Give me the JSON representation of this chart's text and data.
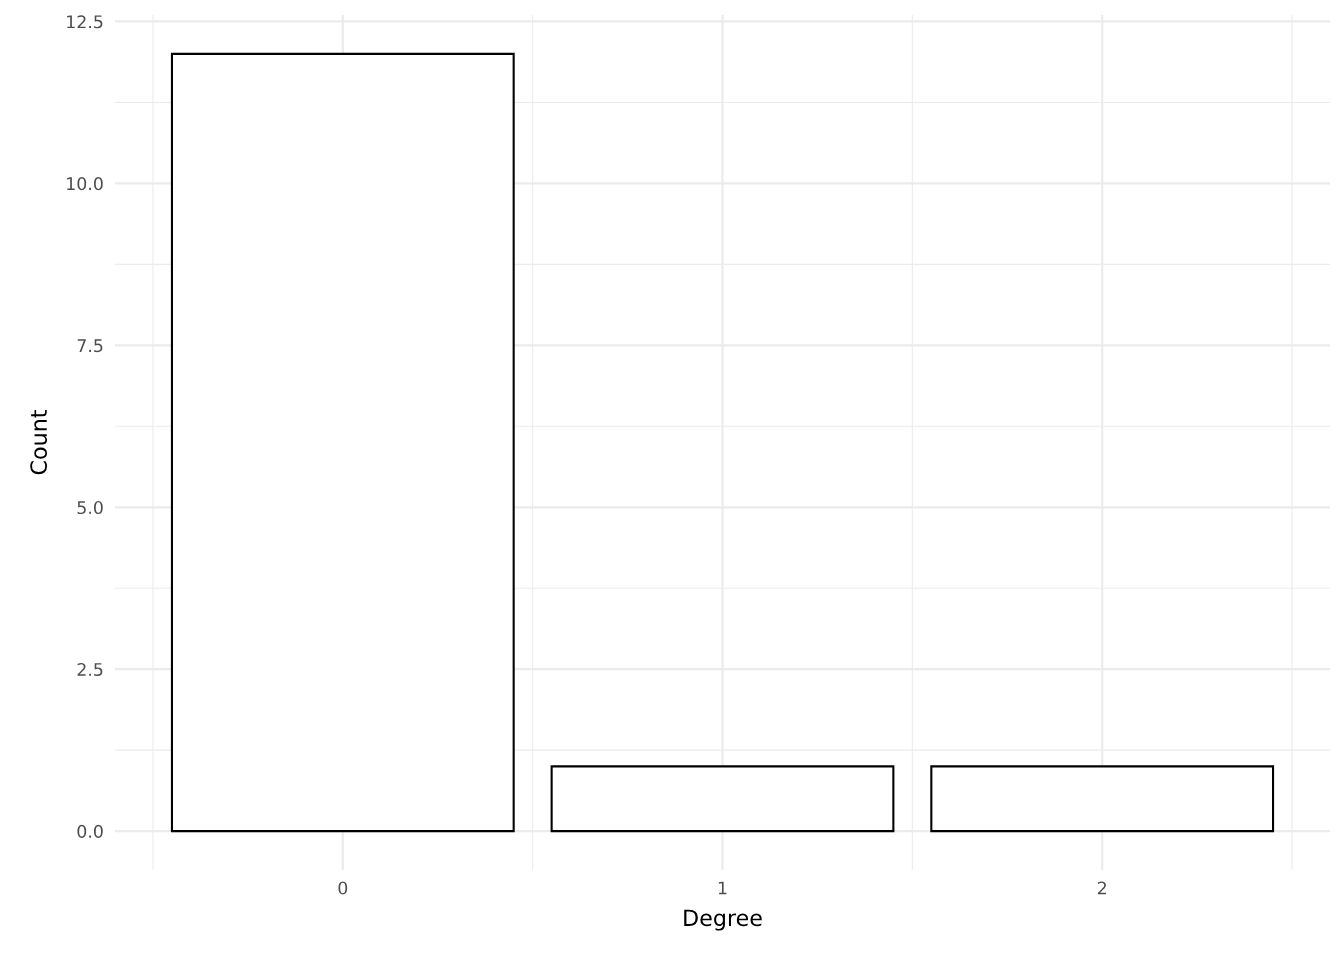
{
  "chart_data": {
    "type": "bar",
    "xlabel": "Degree",
    "ylabel": "Count",
    "categories": [
      "0",
      "1",
      "2"
    ],
    "series": [
      {
        "color": "#ffffff",
        "values": [
          12,
          1,
          1
        ]
      }
    ],
    "ylim": [
      -0.6,
      12.6
    ],
    "yticks": [
      {
        "value": 0,
        "label": "0.0"
      },
      {
        "value": 2.5,
        "label": "2.5"
      },
      {
        "value": 5,
        "label": "5.0"
      },
      {
        "value": 7.5,
        "label": "7.5"
      },
      {
        "value": 10,
        "label": "10.0"
      },
      {
        "value": 12.5,
        "label": "12.5"
      }
    ],
    "grid": true,
    "legend": false
  }
}
